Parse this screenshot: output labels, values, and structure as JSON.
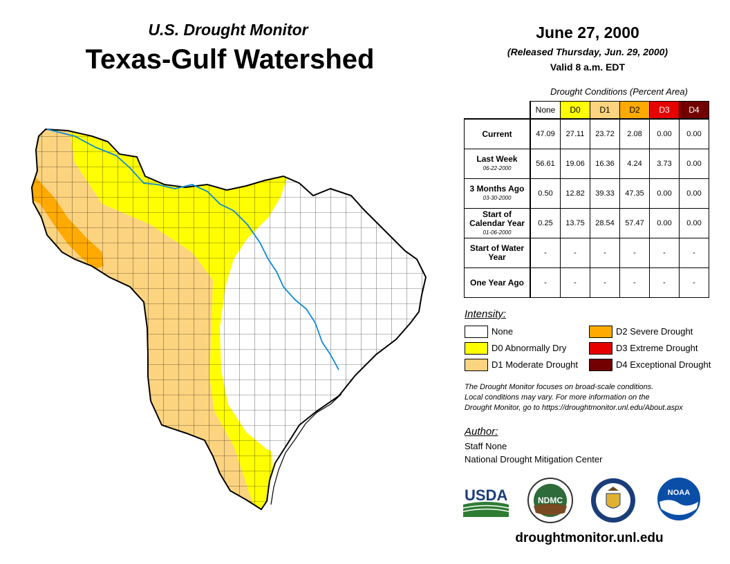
{
  "header": {
    "subtitle": "U.S. Drought Monitor",
    "title": "Texas-Gulf Watershed",
    "date": "June 27, 2000",
    "released": "(Released Thursday, Jun. 29, 2000)",
    "valid": "Valid 8 a.m. EDT"
  },
  "table": {
    "caption": "Drought Conditions (Percent Area)",
    "columns": [
      "None",
      "D0",
      "D1",
      "D2",
      "D3",
      "D4"
    ],
    "column_colors": [
      "#ffffff",
      "#ffff00",
      "#fcd37f",
      "#ffaa00",
      "#e60000",
      "#730000"
    ],
    "rows": [
      {
        "label": "Current",
        "date": "",
        "values": [
          "47.09",
          "27.11",
          "23.72",
          "2.08",
          "0.00",
          "0.00"
        ]
      },
      {
        "label": "Last Week",
        "date": "06-22-2000",
        "values": [
          "56.61",
          "19.06",
          "16.36",
          "4.24",
          "3.73",
          "0.00"
        ]
      },
      {
        "label": "3 Months Ago",
        "date": "03-30-2000",
        "values": [
          "0.50",
          "12.82",
          "39.33",
          "47.35",
          "0.00",
          "0.00"
        ]
      },
      {
        "label": "Start of Calendar Year",
        "date": "01-06-2000",
        "values": [
          "0.25",
          "13.75",
          "28.54",
          "57.47",
          "0.00",
          "0.00"
        ]
      },
      {
        "label": "Start of Water Year",
        "date": "",
        "values": [
          "-",
          "-",
          "-",
          "-",
          "-",
          "-"
        ]
      },
      {
        "label": "One Year Ago",
        "date": "",
        "values": [
          "-",
          "-",
          "-",
          "-",
          "-",
          "-"
        ]
      }
    ]
  },
  "legend": {
    "title": "Intensity:",
    "items": [
      {
        "label": "None",
        "color": "#ffffff"
      },
      {
        "label": "D0 Abnormally Dry",
        "color": "#ffff00"
      },
      {
        "label": "D1 Moderate Drought",
        "color": "#fcd37f"
      },
      {
        "label": "D2 Severe Drought",
        "color": "#ffaa00"
      },
      {
        "label": "D3 Extreme Drought",
        "color": "#e60000"
      },
      {
        "label": "D4 Exceptional Drought",
        "color": "#730000"
      }
    ]
  },
  "note": {
    "line1": "The Drought Monitor focuses on broad-scale conditions.",
    "line2": "Local conditions may vary. For more information on the",
    "line3": "Drought Monitor, go to https://droughtmonitor.unl.edu/About.aspx"
  },
  "author": {
    "title": "Author:",
    "name": "Staff None",
    "org": "National Drought Mitigation Center"
  },
  "logos": {
    "usda": "USDA",
    "ndmc": "NDMC",
    "noaa": "NOAA"
  },
  "website": "droughtmonitor.unl.edu"
}
